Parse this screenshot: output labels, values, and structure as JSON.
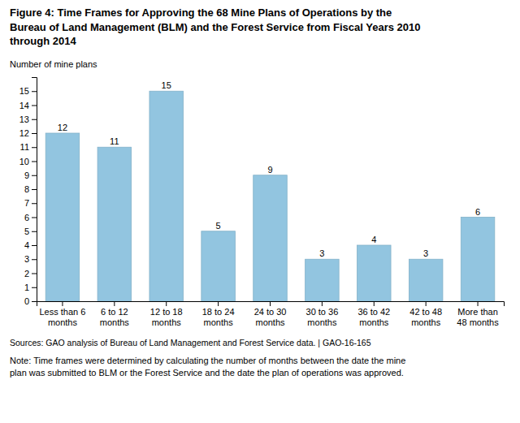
{
  "chart_data": {
    "type": "bar",
    "title": "Figure 4: Time Frames for Approving the 68 Mine Plans of Operations by the\nBureau of Land Management (BLM) and the Forest Service from Fiscal Years 2010\nthrough 2014",
    "ylabel": "Number of mine plans",
    "categories": [
      "Less than 6\nmonths",
      "6 to 12\nmonths",
      "12 to 18\nmonths",
      "18 to 24\nmonths",
      "24 to 30\nmonths",
      "30 to 36\nmonths",
      "36 to 42\nmonths",
      "42 to 48\nmonths",
      "More than\n48 months"
    ],
    "values": [
      12,
      11,
      15,
      5,
      9,
      3,
      4,
      3,
      6
    ],
    "color": "#92C5E0",
    "ylim": [
      0,
      16
    ],
    "yticks": [
      0,
      1,
      2,
      3,
      4,
      5,
      6,
      7,
      8,
      9,
      10,
      11,
      12,
      13,
      14,
      15
    ],
    "grid": false,
    "data_labels": true,
    "annotations": [
      "Sources: GAO analysis of Bureau of Land Management and Forest Service data.  | GAO-16-165",
      "Note: Time frames were determined by calculating the number of months between the date the mine\nplan was submitted to BLM or the Forest Service and the date the plan of operations was approved."
    ]
  }
}
